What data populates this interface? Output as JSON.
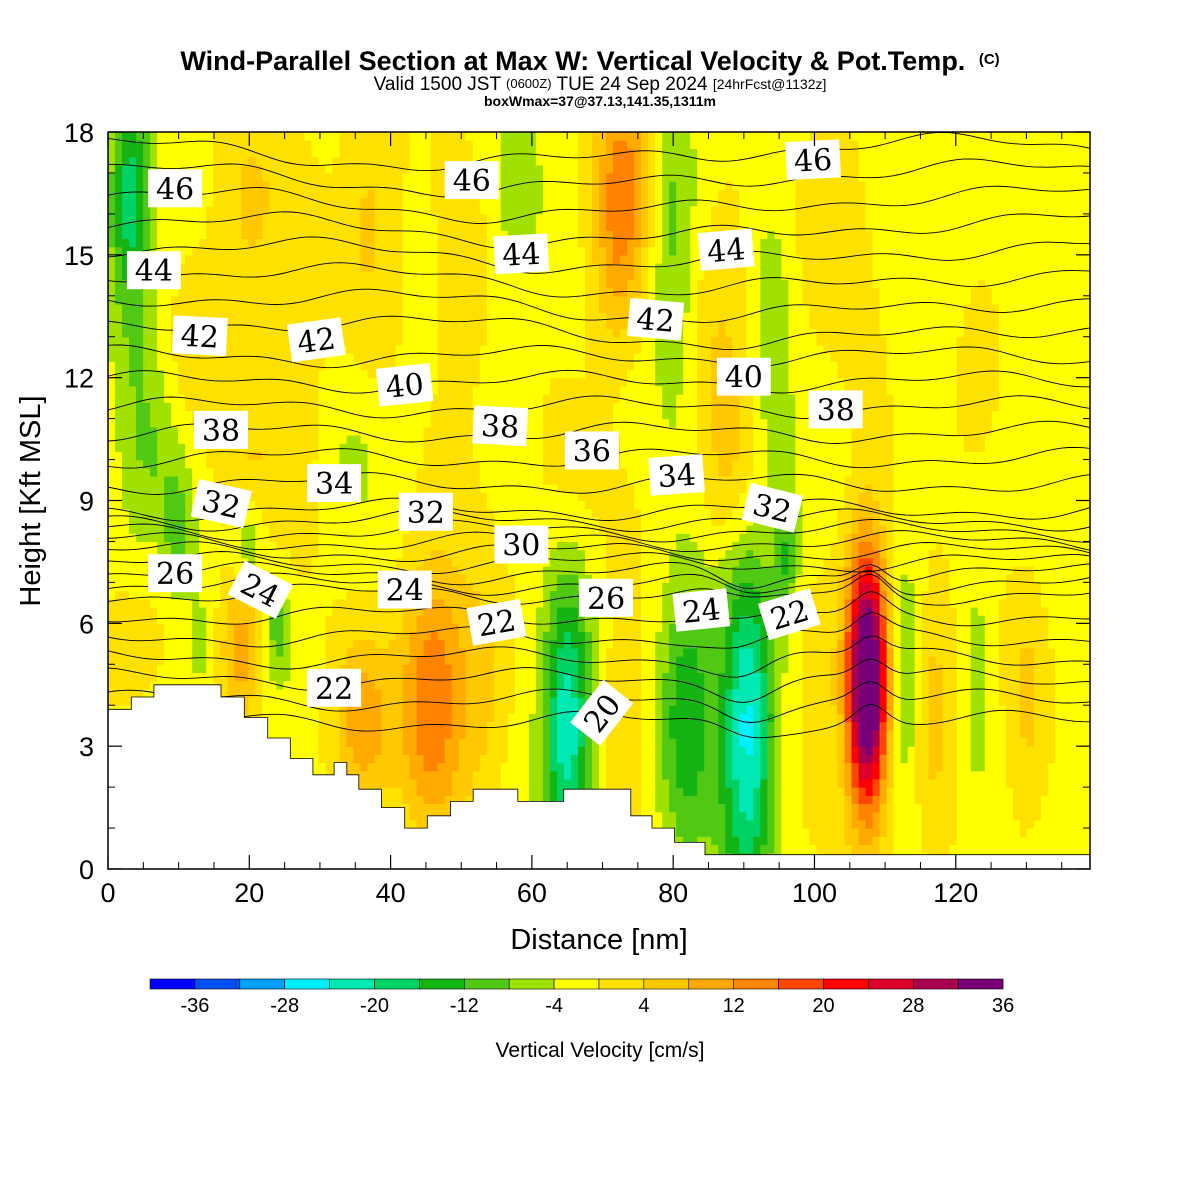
{
  "title": {
    "main": "Wind-Parallel Section at Max W: Vertical Velocity & Pot.Temp.",
    "copyright": "(C)",
    "valid_pre": "Valid 1500 JST",
    "valid_utc": "(0600Z)",
    "valid_post": "TUE 24 Sep 2024",
    "forecast": "[24hrFcst@1132z]",
    "box_info": "boxWmax=37@37.13,141.35,1311m"
  },
  "chart_data": {
    "type": "heatmap",
    "title": "Wind-Parallel Section at Max W: Vertical Velocity & Pot.Temp.",
    "xlabel": "Distance [nm]",
    "ylabel": "Height [Kft MSL]",
    "xlim": [
      0,
      139
    ],
    "ylim": [
      0,
      18
    ],
    "x_ticks": [
      0,
      20,
      40,
      60,
      80,
      100,
      120
    ],
    "y_ticks": [
      0,
      3,
      6,
      9,
      12,
      15,
      18
    ],
    "x_tick_labels": [
      "0",
      "20",
      "40",
      "60",
      "80",
      "100",
      "120"
    ],
    "y_tick_labels": [
      "0",
      "3",
      "6",
      "9",
      "12",
      "15",
      "18"
    ],
    "colorbar": {
      "label": "Vertical Velocity [cm/s]",
      "levels": [
        -40,
        -36,
        -32,
        -28,
        -24,
        -20,
        -16,
        -12,
        -8,
        -4,
        0,
        4,
        8,
        12,
        16,
        20,
        24,
        28,
        32,
        36,
        40
      ],
      "tick_values": [
        -36,
        -28,
        -20,
        -12,
        -4,
        4,
        12,
        20,
        28,
        36
      ],
      "tick_labels": [
        "-36",
        "-28",
        "-20",
        "-12",
        "-4",
        "4",
        "12",
        "20",
        "28",
        "36"
      ],
      "colors": [
        "#0000ff",
        "#0050f0",
        "#00a0ff",
        "#00f0ff",
        "#00e8b4",
        "#00d264",
        "#14b414",
        "#50c814",
        "#a0e100",
        "#ffff00",
        "#ffe100",
        "#ffc800",
        "#ffaa00",
        "#ff8200",
        "#ff4600",
        "#ff0000",
        "#dc0028",
        "#aa0050",
        "#780078"
      ]
    },
    "velocity_features": [
      {
        "x": 3,
        "z": 16.5,
        "w": -14,
        "sx": 2,
        "sz": 1.6
      },
      {
        "x": 4,
        "z": 13.0,
        "w": -6,
        "sx": 2.5,
        "sz": 4
      },
      {
        "x": 20,
        "z": 16,
        "w": 6,
        "sx": 3.5,
        "sz": 2.2
      },
      {
        "x": 12,
        "z": 12,
        "w": 4,
        "sx": 3,
        "sz": 1.6
      },
      {
        "x": 27,
        "z": 12.5,
        "w": 5,
        "sx": 2.5,
        "sz": 3
      },
      {
        "x": 37,
        "z": 16,
        "w": 6,
        "sx": 3,
        "sz": 2.5
      },
      {
        "x": 50,
        "z": 14,
        "w": 3,
        "sx": 3,
        "sz": 3
      },
      {
        "x": 58,
        "z": 16.5,
        "w": -5,
        "sx": 2.5,
        "sz": 2
      },
      {
        "x": 73,
        "z": 17,
        "w": 14,
        "sx": 2.8,
        "sz": 1.6
      },
      {
        "x": 72,
        "z": 14.5,
        "w": 8,
        "sx": 2.5,
        "sz": 1.5
      },
      {
        "x": 80,
        "z": 15.5,
        "w": -8,
        "sx": 2.2,
        "sz": 3
      },
      {
        "x": 87,
        "z": 13,
        "w": 5,
        "sx": 3,
        "sz": 2.5
      },
      {
        "x": 94,
        "z": 13,
        "w": -6,
        "sx": 1.8,
        "sz": 2.5
      },
      {
        "x": 103,
        "z": 15.5,
        "w": 3,
        "sx": 4,
        "sz": 3
      },
      {
        "x": 123,
        "z": 12,
        "w": 5,
        "sx": 2,
        "sz": 1.2
      },
      {
        "x": 8,
        "z": 10,
        "w": -5,
        "sx": 3,
        "sz": 1.3
      },
      {
        "x": 20,
        "z": 9.5,
        "w": 6,
        "sx": 3,
        "sz": 1.2
      },
      {
        "x": 35,
        "z": 10,
        "w": -3,
        "sx": 4,
        "sz": 1.5
      },
      {
        "x": 65,
        "z": 9.5,
        "w": 3,
        "sx": 4,
        "sz": 1.5
      },
      {
        "x": 88,
        "z": 9.5,
        "w": 5,
        "sx": 3,
        "sz": 1.5
      },
      {
        "x": 100,
        "z": 10,
        "w": -3,
        "sx": 4,
        "sz": 1.5
      },
      {
        "x": 10,
        "z": 8,
        "w": -9,
        "sx": 1.5,
        "sz": 1
      },
      {
        "x": 20,
        "z": 8,
        "w": -8,
        "sx": 1.5,
        "sz": 1
      },
      {
        "x": 96,
        "z": 7.6,
        "w": -10,
        "sx": 1.2,
        "sz": 1
      },
      {
        "x": 3,
        "z": 5.5,
        "w": 6,
        "sx": 3,
        "sz": 1
      },
      {
        "x": 13,
        "z": 5.5,
        "w": -5,
        "sx": 1.3,
        "sz": 1
      },
      {
        "x": 19,
        "z": 5.5,
        "w": 12,
        "sx": 2,
        "sz": 1.2
      },
      {
        "x": 24,
        "z": 5.8,
        "w": -9,
        "sx": 1.3,
        "sz": 0.9
      },
      {
        "x": 36,
        "z": 3.5,
        "w": 12,
        "sx": 3,
        "sz": 1.5
      },
      {
        "x": 46,
        "z": 4.2,
        "w": 17,
        "sx": 3.3,
        "sz": 2.3
      },
      {
        "x": 53,
        "z": 4.5,
        "w": 6,
        "sx": 2.5,
        "sz": 2
      },
      {
        "x": 65,
        "z": 3.5,
        "w": -22,
        "sx": 2.5,
        "sz": 2.5
      },
      {
        "x": 73,
        "z": 4.5,
        "w": 4,
        "sx": 2.5,
        "sz": 2.5
      },
      {
        "x": 82,
        "z": 3.8,
        "w": -14,
        "sx": 2.8,
        "sz": 2.5
      },
      {
        "x": 90.5,
        "z": 3.3,
        "w": -24,
        "sx": 2.7,
        "sz": 3
      },
      {
        "x": 100,
        "z": 4,
        "w": 3,
        "sx": 3,
        "sz": 2
      },
      {
        "x": 107.5,
        "z": 4.6,
        "w": 37,
        "sx": 1.8,
        "sz": 2
      },
      {
        "x": 107,
        "z": 4.5,
        "w": 10,
        "sx": 2.5,
        "sz": 3.5
      },
      {
        "x": 113,
        "z": 4.5,
        "w": -8,
        "sx": 1.2,
        "sz": 2
      },
      {
        "x": 117,
        "z": 4,
        "w": 7,
        "sx": 2,
        "sz": 2
      },
      {
        "x": 123,
        "z": 4.5,
        "w": -5,
        "sx": 1.2,
        "sz": 2
      },
      {
        "x": 130,
        "z": 4,
        "w": 6,
        "sx": 2,
        "sz": 2
      }
    ],
    "contour_labels": [
      {
        "text": "46",
        "x": 9.5,
        "z": 16.6,
        "angle": 0
      },
      {
        "text": "46",
        "x": 51.5,
        "z": 16.8,
        "angle": 0
      },
      {
        "text": "46",
        "x": 99.8,
        "z": 17.3,
        "angle": -3
      },
      {
        "text": "44",
        "x": 6.5,
        "z": 14.6,
        "angle": 0
      },
      {
        "text": "44",
        "x": 58.5,
        "z": 15.0,
        "angle": -3
      },
      {
        "text": "44",
        "x": 87.5,
        "z": 15.1,
        "angle": -5
      },
      {
        "text": "42",
        "x": 13,
        "z": 13.0,
        "angle": 3
      },
      {
        "text": "42",
        "x": 29.5,
        "z": 12.9,
        "angle": -8
      },
      {
        "text": "42",
        "x": 77.5,
        "z": 13.4,
        "angle": 5
      },
      {
        "text": "40",
        "x": 42,
        "z": 11.8,
        "angle": -6
      },
      {
        "text": "40",
        "x": 90,
        "z": 12.0,
        "angle": 0
      },
      {
        "text": "38",
        "x": 16,
        "z": 10.7,
        "angle": 0
      },
      {
        "text": "38",
        "x": 55.5,
        "z": 10.8,
        "angle": 3
      },
      {
        "text": "38",
        "x": 103,
        "z": 11.2,
        "angle": 0
      },
      {
        "text": "36",
        "x": 68.5,
        "z": 10.2,
        "angle": 0
      },
      {
        "text": "34",
        "x": 32,
        "z": 9.4,
        "angle": 0
      },
      {
        "text": "34",
        "x": 80.5,
        "z": 9.6,
        "angle": -4
      },
      {
        "text": "32",
        "x": 16,
        "z": 8.9,
        "angle": 13
      },
      {
        "text": "32",
        "x": 45,
        "z": 8.7,
        "angle": 0
      },
      {
        "text": "32",
        "x": 94,
        "z": 8.8,
        "angle": 14
      },
      {
        "text": "30",
        "x": 58.5,
        "z": 7.9,
        "angle": 0
      },
      {
        "text": "26",
        "x": 9.5,
        "z": 7.2,
        "angle": 0
      },
      {
        "text": "26",
        "x": 70.5,
        "z": 6.6,
        "angle": 0
      },
      {
        "text": "24",
        "x": 21.5,
        "z": 6.8,
        "angle": 27
      },
      {
        "text": "24",
        "x": 42,
        "z": 6.8,
        "angle": 0
      },
      {
        "text": "24",
        "x": 84,
        "z": 6.3,
        "angle": -6
      },
      {
        "text": "22",
        "x": 55,
        "z": 6.0,
        "angle": -10
      },
      {
        "text": "22",
        "x": 96.5,
        "z": 6.2,
        "angle": -17
      },
      {
        "text": "22",
        "x": 32,
        "z": 4.4,
        "angle": 0
      },
      {
        "text": "20",
        "x": 70,
        "z": 3.8,
        "angle": -52
      }
    ]
  }
}
